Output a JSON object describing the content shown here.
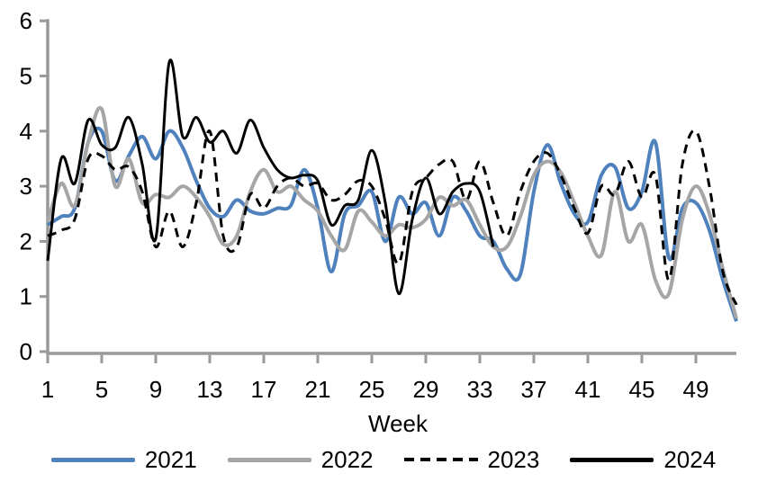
{
  "chart_data": {
    "type": "line",
    "title": "",
    "xlabel": "Week",
    "ylabel": "",
    "xlim": [
      1,
      52
    ],
    "ylim": [
      0,
      6
    ],
    "grid": false,
    "legend_position": "bottom",
    "x_ticks": [
      1,
      5,
      9,
      13,
      17,
      21,
      25,
      29,
      33,
      37,
      41,
      45,
      49
    ],
    "y_ticks": [
      0,
      1,
      2,
      3,
      4,
      5,
      6
    ],
    "x_unit": "week number, weekly values starting at week 1",
    "series": [
      {
        "name": "2021",
        "color": "#4F81BD",
        "style": "solid",
        "start_week": 1,
        "values": [
          2.3,
          2.45,
          2.6,
          3.8,
          4.0,
          3.1,
          3.55,
          3.9,
          3.5,
          4.0,
          3.7,
          3.1,
          2.6,
          2.45,
          2.75,
          2.55,
          2.5,
          2.6,
          2.65,
          3.3,
          2.6,
          1.45,
          2.5,
          2.65,
          2.9,
          2.0,
          2.8,
          2.5,
          2.7,
          2.1,
          2.8,
          2.55,
          2.1,
          2.0,
          1.5,
          1.4,
          2.9,
          3.75,
          3.05,
          2.5,
          2.35,
          3.2,
          3.35,
          2.6,
          2.9,
          3.8,
          1.7,
          2.6,
          2.7,
          2.2,
          1.3,
          0.55
        ]
      },
      {
        "name": "2022",
        "color": "#A6A6A6",
        "style": "solid",
        "start_week": 1,
        "values": [
          2.35,
          3.05,
          2.65,
          3.8,
          4.4,
          3.0,
          3.5,
          2.7,
          2.85,
          2.8,
          3.0,
          2.8,
          2.45,
          1.95,
          2.1,
          2.9,
          3.3,
          2.9,
          3.0,
          2.75,
          2.55,
          2.1,
          1.85,
          2.55,
          2.35,
          2.1,
          2.3,
          2.25,
          2.4,
          2.8,
          2.65,
          2.75,
          2.3,
          1.9,
          1.9,
          2.45,
          3.2,
          3.45,
          3.25,
          2.7,
          2.1,
          1.75,
          2.9,
          2.0,
          2.3,
          1.3,
          1.05,
          2.4,
          3.0,
          2.5,
          1.5,
          0.6
        ]
      },
      {
        "name": "2023",
        "color": "#000000",
        "style": "dashed",
        "start_week": 1,
        "values": [
          2.1,
          2.2,
          2.4,
          3.5,
          3.55,
          3.3,
          3.35,
          2.9,
          1.9,
          2.55,
          1.9,
          2.7,
          4.0,
          2.1,
          1.9,
          2.85,
          2.6,
          3.0,
          3.15,
          3.0,
          3.05,
          2.75,
          2.85,
          3.1,
          3.0,
          2.4,
          1.6,
          2.9,
          3.15,
          3.4,
          3.45,
          2.75,
          3.45,
          2.7,
          2.1,
          2.9,
          3.45,
          3.6,
          3.2,
          2.6,
          2.15,
          3.0,
          2.85,
          3.45,
          2.8,
          3.2,
          1.3,
          3.4,
          4.0,
          3.0,
          1.45,
          0.85
        ]
      },
      {
        "name": "2024",
        "color": "#000000",
        "style": "solid",
        "start_week": 1,
        "values": [
          1.65,
          3.5,
          3.05,
          4.2,
          3.75,
          3.7,
          4.25,
          3.4,
          2.05,
          5.25,
          3.9,
          4.25,
          3.8,
          4.0,
          3.6,
          4.2,
          3.7,
          3.3,
          3.15,
          3.2,
          3.1,
          2.3,
          2.65,
          2.75,
          3.65,
          2.7,
          1.05,
          2.4,
          3.15,
          2.5,
          2.9,
          3.05,
          2.9,
          1.9
        ]
      }
    ]
  },
  "colors": {
    "axis": "#999999",
    "text": "#000000",
    "background": "#FFFFFF"
  },
  "legend": {
    "items": [
      {
        "label": "2021"
      },
      {
        "label": "2022"
      },
      {
        "label": "2023"
      },
      {
        "label": "2024"
      }
    ]
  }
}
